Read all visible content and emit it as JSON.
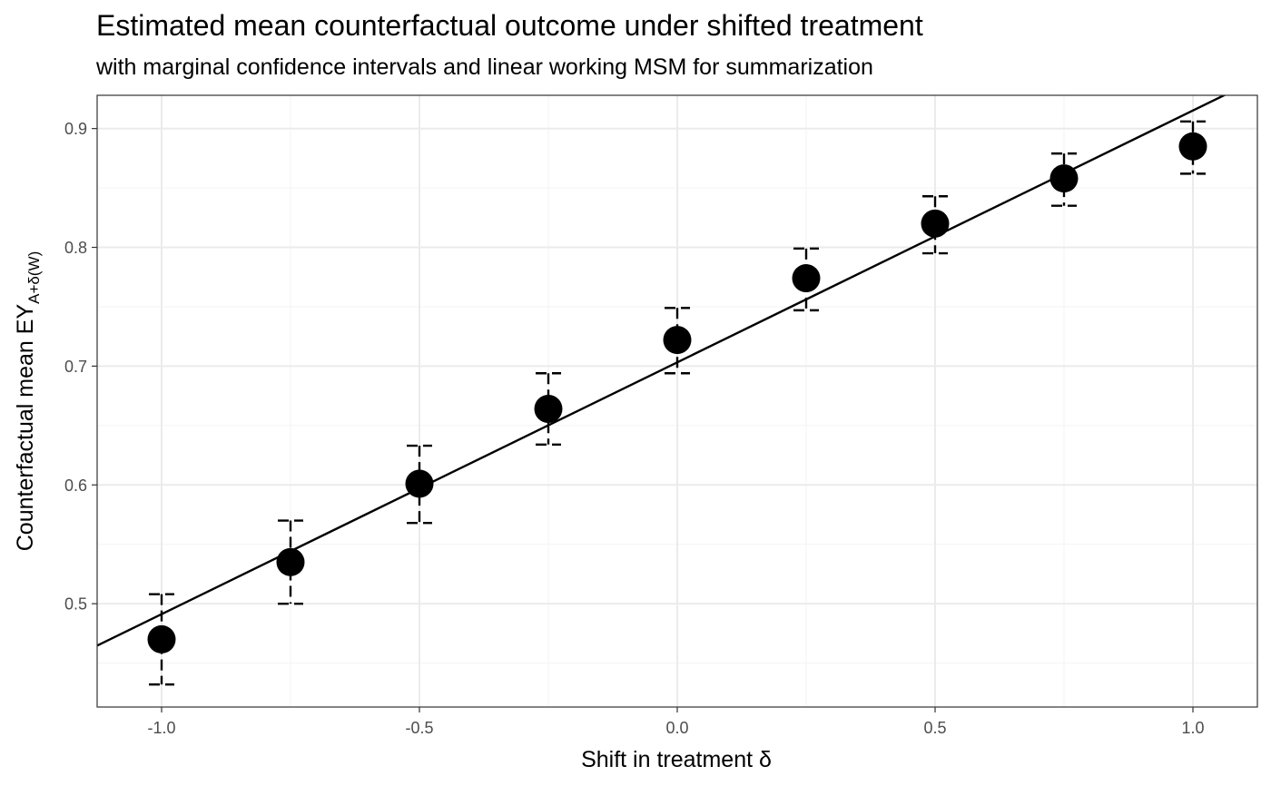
{
  "chart_data": {
    "type": "scatter",
    "title": "Estimated mean counterfactual outcome under shifted treatment",
    "subtitle": "with marginal confidence intervals and linear working MSM for summarization",
    "xlabel": "Shift in treatment δ",
    "ylabel": {
      "main": "Counterfactual mean EY",
      "subscript": "A+δ(W)"
    },
    "xlim": [
      -1.125,
      1.125
    ],
    "ylim": [
      0.413,
      0.928
    ],
    "x_ticks": [
      -1.0,
      -0.5,
      0.0,
      0.5,
      1.0
    ],
    "x_tick_labels": [
      "-1.0",
      "-0.5",
      "0.0",
      "0.5",
      "1.0"
    ],
    "y_ticks": [
      0.5,
      0.6,
      0.7,
      0.8,
      0.9
    ],
    "y_tick_labels": [
      "0.5",
      "0.6",
      "0.7",
      "0.8",
      "0.9"
    ],
    "grid": true,
    "points": [
      {
        "x": -1.0,
        "y": 0.47,
        "lower": 0.432,
        "upper": 0.508
      },
      {
        "x": -0.75,
        "y": 0.535,
        "lower": 0.5,
        "upper": 0.57
      },
      {
        "x": -0.5,
        "y": 0.601,
        "lower": 0.568,
        "upper": 0.633
      },
      {
        "x": -0.25,
        "y": 0.664,
        "lower": 0.634,
        "upper": 0.694
      },
      {
        "x": 0.0,
        "y": 0.722,
        "lower": 0.694,
        "upper": 0.749
      },
      {
        "x": 0.25,
        "y": 0.774,
        "lower": 0.747,
        "upper": 0.799
      },
      {
        "x": 0.5,
        "y": 0.82,
        "lower": 0.795,
        "upper": 0.843
      },
      {
        "x": 0.75,
        "y": 0.858,
        "lower": 0.835,
        "upper": 0.879
      },
      {
        "x": 1.0,
        "y": 0.885,
        "lower": 0.862,
        "upper": 0.906
      }
    ],
    "msm_line": {
      "intercept": 0.7032,
      "slope": 0.212
    },
    "colors": {
      "points": "#000000",
      "line": "#000000",
      "grid_major": "#ebebeb",
      "grid_minor": "#f5f5f5",
      "panel_border": "#333333"
    }
  }
}
